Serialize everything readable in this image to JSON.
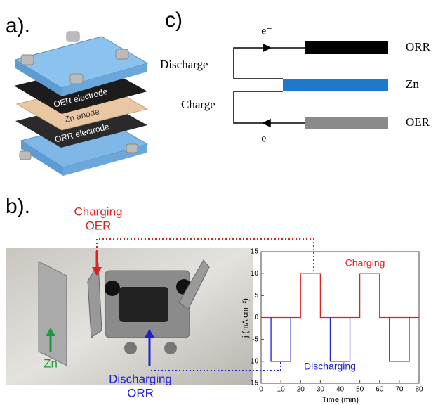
{
  "panel_a": {
    "label": "a).",
    "layers": [
      "OER electrode",
      "Zn anode",
      "ORR electrode"
    ]
  },
  "panel_c": {
    "label": "c)",
    "electron_top": "e⁻",
    "electron_bottom": "e⁻",
    "modes": [
      "Discharge",
      "Charge"
    ],
    "electrodes": [
      "ORR",
      "Zn",
      "OER"
    ]
  },
  "panel_b": {
    "label": "b).",
    "charging": [
      "Charging",
      "OER"
    ],
    "zn": "Zn",
    "discharging": [
      "Discharging",
      "ORR"
    ]
  },
  "chart_data": {
    "type": "line",
    "x_label": "Time (min)",
    "y_label": "j (mA cm⁻²)",
    "xlim": [
      0,
      80
    ],
    "xticks": [
      0,
      10,
      20,
      30,
      40,
      50,
      60,
      70,
      80
    ],
    "ylim": [
      -15,
      15
    ],
    "yticks": [
      -15,
      -10,
      -5,
      0,
      5,
      10,
      15
    ],
    "series": [
      {
        "name": "Charging",
        "color": "#e02020",
        "x": [
          0,
          20,
          20,
          30,
          30,
          50,
          50,
          60,
          60,
          80
        ],
        "values": [
          0,
          0,
          10,
          10,
          0,
          0,
          10,
          10,
          0,
          0
        ]
      },
      {
        "name": "Discharging",
        "color": "#2020d0",
        "x": [
          5,
          5,
          15,
          15,
          25,
          35,
          35,
          45,
          45,
          55,
          65,
          65,
          75,
          75
        ],
        "values": [
          0,
          -10,
          -10,
          0,
          null,
          0,
          -10,
          -10,
          0,
          null,
          0,
          -10,
          -10,
          0
        ]
      }
    ]
  }
}
